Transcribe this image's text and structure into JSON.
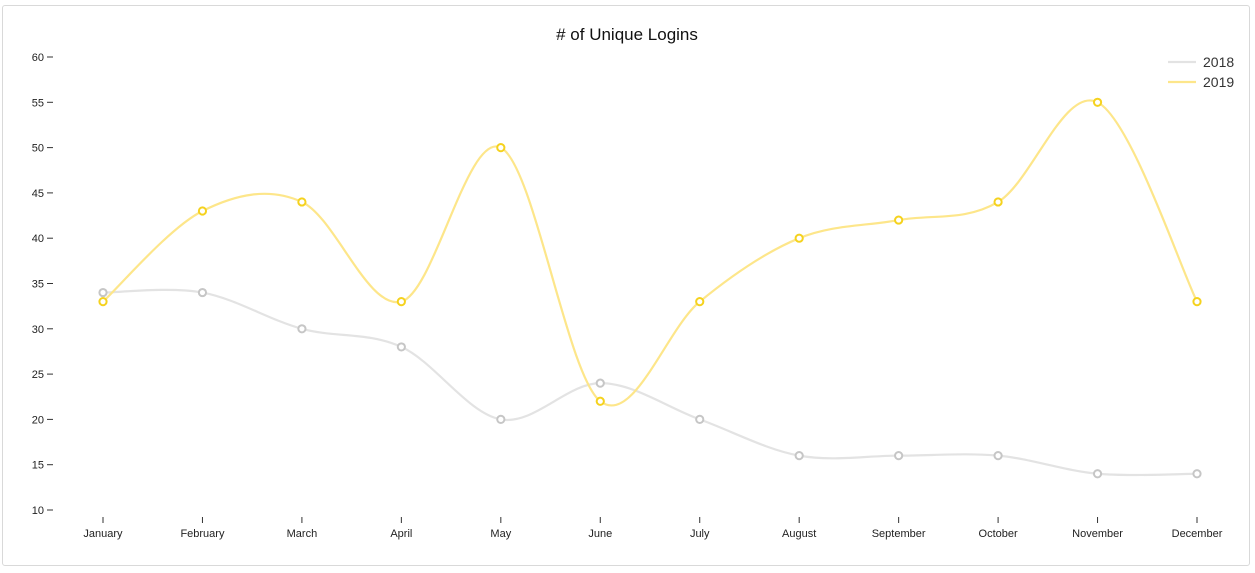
{
  "chart_data": {
    "type": "line",
    "title": "# of Unique Logins",
    "xlabel": "",
    "ylabel": "",
    "categories": [
      "January",
      "February",
      "March",
      "April",
      "May",
      "June",
      "July",
      "August",
      "September",
      "October",
      "November",
      "December"
    ],
    "ylim": [
      10,
      60
    ],
    "yticks": [
      10,
      15,
      20,
      25,
      30,
      35,
      40,
      45,
      50,
      55,
      60
    ],
    "grid": false,
    "legend_position": "top-right",
    "series": [
      {
        "name": "2018",
        "color": "#e3e3e3",
        "marker_color": "#c6c6c6",
        "values": [
          34,
          34,
          30,
          28,
          20,
          24,
          20,
          16,
          16,
          16,
          14,
          14
        ]
      },
      {
        "name": "2019",
        "color": "#fde68a",
        "marker_color": "#f5d21e",
        "values": [
          33,
          43,
          44,
          33,
          50,
          22,
          33,
          40,
          42,
          44,
          55,
          33
        ]
      }
    ]
  }
}
